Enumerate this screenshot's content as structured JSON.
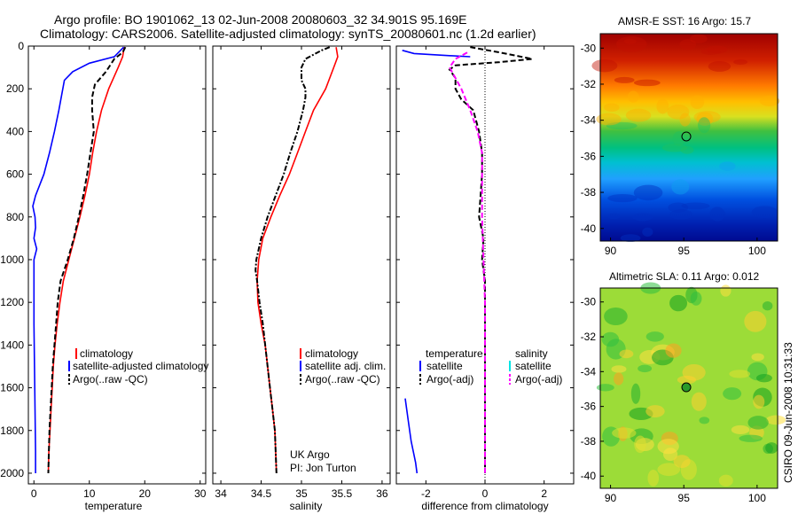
{
  "titles": {
    "line1": "Argo profile: BO 1901062_13 02-Jun-2008 20080603_32 34.901S 95.169E",
    "line2": "Climatology: CARS2006. Satellite-adjusted climatology: synTS_20080601.nc (1.2d earlier)"
  },
  "side_text": "CSIRO 09-Jun-2008 10:31:33",
  "credit": {
    "line1": "UK Argo",
    "line2": "PI: Jon Turton"
  },
  "colors": {
    "climatology": "#ff0000",
    "satellite": "#0000ff",
    "argo": "#000000",
    "sat_salinity": "#00e5e5",
    "argo_salinity": "#ff00ff"
  },
  "chart_data": [
    {
      "type": "line",
      "xlabel": "temperature",
      "ylabel": "",
      "xlim": [
        -1,
        31
      ],
      "ylim": [
        2050,
        0
      ],
      "xticks": [
        "0",
        "10",
        "20",
        "30"
      ],
      "yticks": [
        "0",
        "200",
        "400",
        "600",
        "800",
        "1000",
        "1200",
        "1400",
        "1600",
        "1800",
        "2000"
      ],
      "legend": [
        "climatology",
        "satellite-adjusted climatology",
        "Argo(..raw -QC)"
      ],
      "legend_position": "lower-right",
      "series": [
        {
          "name": "climatology",
          "style": "solid",
          "color": "#ff0000",
          "points": [
            [
              16.3,
              5
            ],
            [
              16,
              50
            ],
            [
              15.2,
              100
            ],
            [
              13.5,
              200
            ],
            [
              12.2,
              300
            ],
            [
              11.3,
              400
            ],
            [
              10.6,
              500
            ],
            [
              10.0,
              600
            ],
            [
              9.2,
              700
            ],
            [
              8.3,
              800
            ],
            [
              7.3,
              900
            ],
            [
              6.3,
              1000
            ],
            [
              5.3,
              1100
            ],
            [
              4.7,
              1200
            ],
            [
              4.2,
              1300
            ],
            [
              3.8,
              1400
            ],
            [
              3.5,
              1500
            ],
            [
              3.3,
              1600
            ],
            [
              3.1,
              1700
            ],
            [
              2.9,
              1800
            ],
            [
              2.7,
              1900
            ],
            [
              2.6,
              2000
            ]
          ]
        },
        {
          "name": "satellite-adjusted climatology",
          "style": "solid",
          "color": "#0000ff",
          "points": [
            [
              16.2,
              5
            ],
            [
              14.5,
              50
            ],
            [
              10,
              80
            ],
            [
              7,
              120
            ],
            [
              5.5,
              160
            ],
            [
              4.5,
              300
            ],
            [
              3.7,
              400
            ],
            [
              2.8,
              500
            ],
            [
              1.8,
              600
            ],
            [
              0.3,
              700
            ],
            [
              -0.2,
              750
            ],
            [
              0.2,
              800
            ],
            [
              0.3,
              850
            ],
            [
              0,
              900
            ],
            [
              0.5,
              950
            ],
            [
              0,
              1000
            ],
            [
              0,
              1100
            ],
            [
              0,
              1300
            ],
            [
              0.1,
              1500
            ],
            [
              0.2,
              1700
            ],
            [
              0.3,
              1900
            ],
            [
              0.3,
              2000
            ]
          ]
        },
        {
          "name": "Argo(..raw -QC)",
          "style": "dashed",
          "color": "#000000",
          "points": [
            [
              16.5,
              5
            ],
            [
              16.0,
              30
            ],
            [
              14.5,
              60
            ],
            [
              13.0,
              120
            ],
            [
              11.0,
              180
            ],
            [
              10.5,
              240
            ],
            [
              10.5,
              300
            ],
            [
              10.8,
              400
            ],
            [
              10.2,
              500
            ],
            [
              9.6,
              600
            ],
            [
              8.9,
              700
            ],
            [
              8.1,
              800
            ],
            [
              7.2,
              900
            ],
            [
              6.1,
              1000
            ],
            [
              4.8,
              1100
            ],
            [
              4.3,
              1200
            ],
            [
              4.0,
              1300
            ],
            [
              3.7,
              1400
            ],
            [
              3.4,
              1500
            ],
            [
              3.2,
              1600
            ],
            [
              3.0,
              1700
            ],
            [
              2.8,
              1800
            ],
            [
              2.7,
              1900
            ],
            [
              2.6,
              2000
            ]
          ]
        }
      ]
    },
    {
      "type": "line",
      "xlabel": "salinity",
      "xlim": [
        33.9,
        36.1
      ],
      "ylim": [
        2050,
        0
      ],
      "xticks": [
        "34",
        "34.5",
        "35",
        "35.5",
        "36"
      ],
      "legend": [
        "climatology",
        "satellite adj. clim.",
        "Argo(..raw -QC)"
      ],
      "legend_position": "lower-right",
      "series": [
        {
          "name": "climatology",
          "style": "solid",
          "color": "#ff0000",
          "points": [
            [
              35.43,
              5
            ],
            [
              35.45,
              50
            ],
            [
              35.4,
              100
            ],
            [
              35.3,
              200
            ],
            [
              35.15,
              300
            ],
            [
              35.05,
              400
            ],
            [
              34.95,
              500
            ],
            [
              34.85,
              600
            ],
            [
              34.73,
              700
            ],
            [
              34.62,
              800
            ],
            [
              34.52,
              900
            ],
            [
              34.47,
              1000
            ],
            [
              34.45,
              1100
            ],
            [
              34.46,
              1200
            ],
            [
              34.5,
              1300
            ],
            [
              34.55,
              1400
            ],
            [
              34.58,
              1500
            ],
            [
              34.61,
              1600
            ],
            [
              34.64,
              1700
            ],
            [
              34.67,
              1800
            ],
            [
              34.68,
              1900
            ],
            [
              34.69,
              2000
            ]
          ]
        },
        {
          "name": "Argo(..raw -QC)",
          "style": "dashdot",
          "color": "#000000",
          "points": [
            [
              35.35,
              5
            ],
            [
              35.25,
              20
            ],
            [
              35.05,
              60
            ],
            [
              35.0,
              100
            ],
            [
              35.0,
              160
            ],
            [
              35.05,
              200
            ],
            [
              35.05,
              240
            ],
            [
              35.02,
              300
            ],
            [
              34.95,
              400
            ],
            [
              34.86,
              500
            ],
            [
              34.78,
              600
            ],
            [
              34.68,
              700
            ],
            [
              34.58,
              800
            ],
            [
              34.5,
              900
            ],
            [
              34.44,
              1000
            ],
            [
              34.43,
              1050
            ],
            [
              34.45,
              1100
            ],
            [
              34.48,
              1200
            ],
            [
              34.52,
              1300
            ],
            [
              34.55,
              1400
            ],
            [
              34.58,
              1500
            ],
            [
              34.61,
              1600
            ],
            [
              34.64,
              1700
            ],
            [
              34.67,
              1800
            ],
            [
              34.68,
              1900
            ],
            [
              34.69,
              2000
            ]
          ]
        }
      ]
    },
    {
      "type": "line",
      "xlabel": "difference from climatology",
      "xlim": [
        -3,
        3
      ],
      "ylim": [
        2050,
        0
      ],
      "xticks": [
        "-2",
        "0",
        "2"
      ],
      "legend_temperature": {
        "heading": "temperature",
        "items": [
          "satellite",
          "Argo(-adj)"
        ]
      },
      "legend_salinity": {
        "heading": "salinity",
        "items": [
          "satellite",
          "Argo(-adj)"
        ]
      },
      "series": [
        {
          "name": "temperature satellite",
          "style": "solid",
          "color": "#0000ff",
          "points": [
            [
              -2.8,
              20
            ],
            [
              -2.4,
              35
            ],
            [
              -1.2,
              45
            ],
            [
              -0.5,
              50
            ]
          ]
        },
        {
          "name": "temperature satellite deep",
          "style": "solid",
          "color": "#0000ff",
          "points": [
            [
              -2.7,
              1650
            ],
            [
              -2.6,
              1750
            ],
            [
              -2.5,
              1850
            ],
            [
              -2.35,
              1950
            ],
            [
              -2.3,
              2000
            ]
          ]
        },
        {
          "name": "temperature Argo(-adj)",
          "style": "dashed",
          "color": "#000000",
          "points": [
            [
              -0.5,
              5
            ],
            [
              0.5,
              30
            ],
            [
              1.6,
              60
            ],
            [
              0.5,
              75
            ],
            [
              -1.0,
              90
            ],
            [
              -1.2,
              110
            ],
            [
              -1.0,
              150
            ],
            [
              -1.0,
              200
            ],
            [
              -0.8,
              250
            ],
            [
              -0.4,
              300
            ],
            [
              -0.2,
              400
            ],
            [
              -0.1,
              500
            ],
            [
              -0.1,
              600
            ],
            [
              -0.15,
              700
            ],
            [
              -0.2,
              800
            ],
            [
              -0.05,
              900
            ],
            [
              -0.1,
              1000
            ],
            [
              0,
              1100
            ],
            [
              0,
              1300
            ],
            [
              0,
              1500
            ],
            [
              0,
              1700
            ],
            [
              0,
              1900
            ],
            [
              0,
              2000
            ]
          ]
        },
        {
          "name": "salinity Argo(-adj)",
          "style": "dashed",
          "color": "#ff00ff",
          "points": [
            [
              -0.6,
              30
            ],
            [
              -1.0,
              60
            ],
            [
              -1.2,
              100
            ],
            [
              -1.0,
              150
            ],
            [
              -0.8,
              200
            ],
            [
              -0.5,
              300
            ],
            [
              -0.25,
              400
            ],
            [
              -0.1,
              500
            ],
            [
              -0.1,
              600
            ],
            [
              -0.1,
              700
            ],
            [
              -0.1,
              800
            ],
            [
              -0.05,
              1000
            ],
            [
              0,
              1200
            ],
            [
              0,
              1400
            ],
            [
              0,
              1600
            ],
            [
              0,
              1800
            ],
            [
              0,
              2000
            ]
          ]
        }
      ]
    },
    {
      "type": "heatmap",
      "title": "AMSR-E SST: 16 Argo: 15.7",
      "xlim": [
        89.3,
        101.4
      ],
      "ylim": [
        -40.7,
        -29.2
      ],
      "xticks": [
        "90",
        "95",
        "100"
      ],
      "yticks": [
        "-30",
        "-32",
        "-34",
        "-36",
        "-38",
        "-40"
      ],
      "marker": {
        "lon": 95.17,
        "lat": -34.9
      },
      "description_colors": [
        "dark red at north",
        "orange",
        "yellow",
        "green near -35",
        "cyan",
        "dark blue at south"
      ]
    },
    {
      "type": "heatmap",
      "title": "Altimetric SLA: 0.11 Argo: 0.012",
      "xlim": [
        89.3,
        101.4
      ],
      "ylim": [
        -40.7,
        -29.2
      ],
      "xticks": [
        "90",
        "95",
        "100"
      ],
      "yticks": [
        "-30",
        "-32",
        "-34",
        "-36",
        "-38",
        "-40"
      ],
      "marker": {
        "lon": 95.17,
        "lat": -34.9
      }
    }
  ]
}
